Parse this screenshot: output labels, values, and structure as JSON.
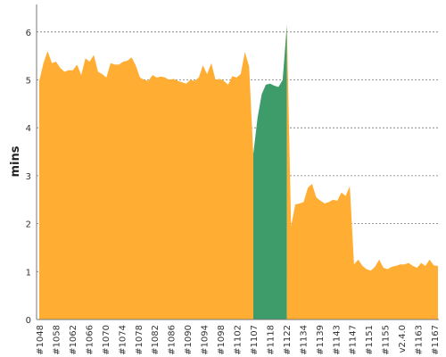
{
  "chart_data": {
    "type": "area",
    "ylabel": "mins",
    "xlabel": "",
    "ylim": [
      0,
      6.5
    ],
    "yticks": [
      0,
      1,
      2,
      3,
      4,
      5,
      6
    ],
    "grid": true,
    "colors": {
      "default": "#FFAD33",
      "highlight": "#3E9B6A"
    },
    "x_tick_labels": [
      "#1048",
      "#1058",
      "#1062",
      "#1066",
      "#1070",
      "#1074",
      "#1078",
      "#1082",
      "#1086",
      "#1090",
      "#1094",
      "#1098",
      "#1102",
      "#1107",
      "#1118",
      "#1122",
      "#1134",
      "#1139",
      "#1143",
      "#1147",
      "#1151",
      "#1155",
      "v2.4.0",
      "#1163",
      "#1167"
    ],
    "series": [
      {
        "color_key": "default",
        "values": [
          4.98,
          5.35,
          5.6,
          5.35,
          5.38,
          5.25,
          5.17,
          5.2,
          5.2,
          5.32,
          5.1,
          5.45,
          5.38,
          5.52,
          5.17,
          5.12,
          5.05,
          5.35,
          5.32,
          5.32,
          5.38,
          5.4,
          5.47,
          5.3,
          5.05,
          5.0,
          4.98,
          5.1,
          5.05,
          5.07,
          5.05,
          5.0,
          5.02,
          4.98,
          4.95,
          4.92,
          5.0,
          4.98,
          5.05,
          5.3,
          5.12,
          5.35,
          5.0,
          5.02,
          4.98,
          4.9,
          5.08,
          5.05,
          5.12,
          5.58,
          5.28,
          3.45,
          4.2,
          4.7,
          4.9,
          4.92,
          4.88,
          4.85,
          5.0,
          6.15,
          1.95,
          2.4,
          2.42,
          2.45,
          2.75,
          2.83,
          2.55,
          2.48,
          2.42,
          2.45,
          2.5,
          2.48,
          2.65,
          2.58,
          2.78,
          1.15,
          1.25,
          1.12,
          1.05,
          1.02,
          1.1,
          1.25,
          1.08,
          1.05,
          1.1,
          1.12,
          1.15,
          1.15,
          1.18,
          1.12,
          1.08,
          1.18,
          1.12,
          1.25,
          1.13,
          1.12
        ]
      }
    ],
    "highlight_range": [
      51,
      59
    ]
  }
}
